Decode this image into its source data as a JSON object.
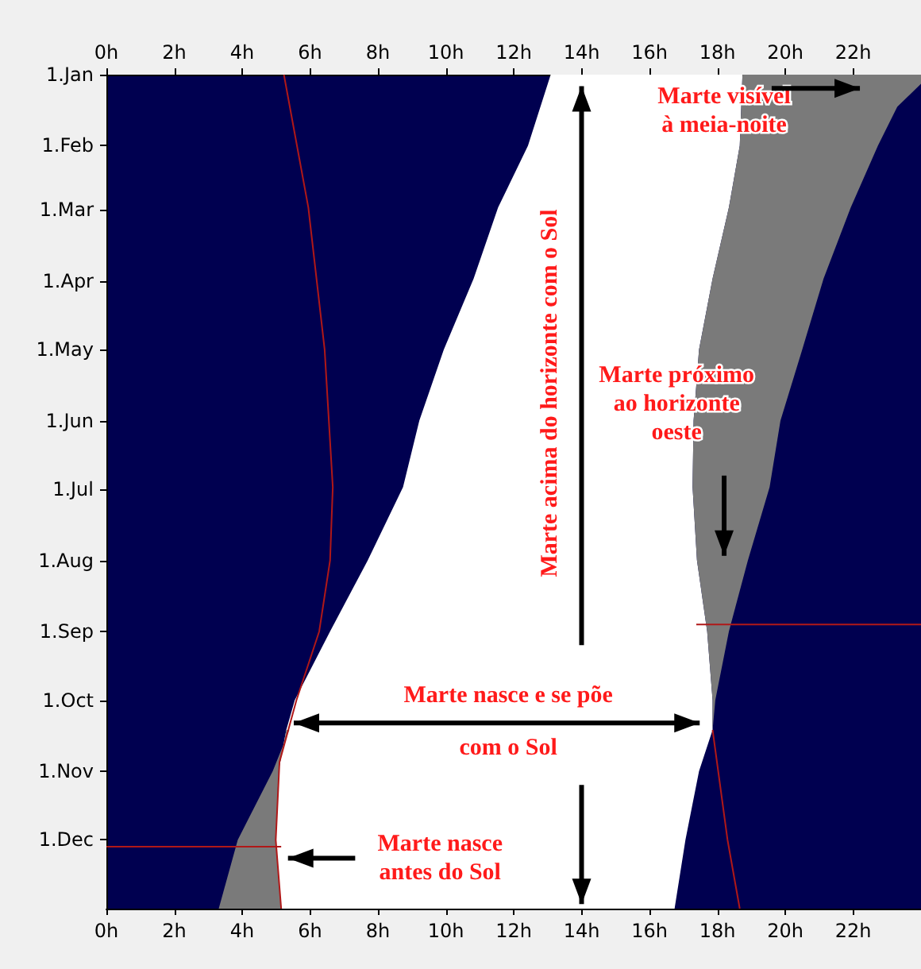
{
  "chart_data": {
    "type": "area",
    "orientation": "horizontal",
    "xlim": [
      0,
      24
    ],
    "xticks": [
      {
        "value": 0,
        "label": "0h"
      },
      {
        "value": 2,
        "label": "2h"
      },
      {
        "value": 4,
        "label": "4h"
      },
      {
        "value": 6,
        "label": "6h"
      },
      {
        "value": 8,
        "label": "8h"
      },
      {
        "value": 10,
        "label": "10h"
      },
      {
        "value": 12,
        "label": "12h"
      },
      {
        "value": 14,
        "label": "14h"
      },
      {
        "value": 16,
        "label": "16h"
      },
      {
        "value": 18,
        "label": "18h"
      },
      {
        "value": 20,
        "label": "20h"
      },
      {
        "value": 22,
        "label": "22h"
      }
    ],
    "x2lim": [
      0,
      24
    ],
    "x2ticks": [
      {
        "value": 0,
        "label": "0h"
      },
      {
        "value": 2,
        "label": "2h"
      },
      {
        "value": 4,
        "label": "4h"
      },
      {
        "value": 6,
        "label": "6h"
      },
      {
        "value": 8,
        "label": "8h"
      },
      {
        "value": 10,
        "label": "10h"
      },
      {
        "value": 12,
        "label": "12h"
      },
      {
        "value": 14,
        "label": "14h"
      },
      {
        "value": 16,
        "label": "16h"
      },
      {
        "value": 18,
        "label": "18h"
      },
      {
        "value": 20,
        "label": "20h"
      },
      {
        "value": 22,
        "label": "22h"
      }
    ],
    "ylim": [
      "--12-31",
      "--01-01"
    ],
    "yticks": [
      {
        "value": "--01-01",
        "label": "1.Jan"
      },
      {
        "value": "--02-01",
        "label": "1.Feb"
      },
      {
        "value": "--03-01",
        "label": "1.Mar"
      },
      {
        "value": "--04-01",
        "label": "1.Apr"
      },
      {
        "value": "--05-01",
        "label": "1.May"
      },
      {
        "value": "--06-01",
        "label": "1.Jun"
      },
      {
        "value": "--07-01",
        "label": "1.Jul"
      },
      {
        "value": "--08-01",
        "label": "1.Aug"
      },
      {
        "value": "--09-01",
        "label": "1.Sep"
      },
      {
        "value": "--10-01",
        "label": "1.Oct"
      },
      {
        "value": "--11-01",
        "label": "1.Nov"
      },
      {
        "value": "--12-01",
        "label": "1.Dec"
      }
    ],
    "series": [
      {
        "color": "#ffffff",
        "values": [
          13.09,
          12.42,
          11.54,
          10.82,
          9.94,
          9.22,
          8.74,
          7.7,
          6.59,
          5.55,
          5.3,
          5.07,
          4.99,
          5.15,
          16.74,
          17.06,
          17.46,
          17.86,
          17.86,
          17.7,
          17.4,
          17.27,
          17.3,
          17.46,
          17.86,
          18.34,
          18.66,
          18.74
        ],
        "x": [
          "--01-01",
          "--02-01",
          "--02-28",
          "--03-31",
          "--05-01",
          "--06-01",
          "--06-30",
          "--08-01",
          "--09-01",
          "--10-01",
          "--10-14",
          "--11-01",
          "--12-01",
          "--12-31",
          "--12-31",
          "--12-01",
          "--11-01",
          "--10-14",
          "--10-01",
          "--09-01",
          "--08-01",
          "--06-30",
          "--06-01",
          "--05-01",
          "--03-31",
          "--02-28",
          "--02-01",
          "--01-01"
        ]
      },
      {
        "color": "#7a7a7a",
        "values": [
          18.74,
          18.66,
          18.34,
          17.86,
          17.46,
          17.3,
          17.27,
          17.4,
          17.7,
          17.86,
          17.86,
          17.94,
          18.34,
          18.9,
          19.54,
          19.86,
          20.5,
          21.13,
          21.93,
          22.73,
          23.3,
          24,
          24
        ],
        "x": [
          "--01-01",
          "--02-01",
          "--02-28",
          "--03-31",
          "--05-01",
          "--06-01",
          "--06-30",
          "--08-01",
          "--09-01",
          "--10-01",
          "--10-14",
          "--10-01",
          "--09-01",
          "--08-01",
          "--06-30",
          "--06-01",
          "--05-01",
          "--03-31",
          "--02-28",
          "--02-01",
          "--01-15",
          "--01-05",
          "--01-01"
        ]
      },
      {
        "color": "#7a7a7a",
        "values": [
          5.39,
          4.9,
          3.87,
          3.31,
          5.15,
          4.99,
          5.07,
          5.3
        ],
        "x": [
          "--10-14",
          "--11-01",
          "--12-01",
          "--12-31",
          "--12-31",
          "--12-01",
          "--11-01",
          "--10-14"
        ]
      },
      {
        "type": "line",
        "color": "#b01818",
        "values": [
          5.23,
          5.95,
          6.43,
          6.67,
          6.59,
          6.27,
          5.6,
          5.1,
          4.99,
          5.15
        ],
        "x": [
          "--01-01",
          "--02-28",
          "--05-01",
          "--06-30",
          "--08-01",
          "--09-01",
          "--10-01",
          "--10-28",
          "--12-01",
          "--12-31"
        ]
      },
      {
        "type": "line",
        "color": "#b01818",
        "values": [
          17.86,
          18.3,
          18.66
        ],
        "x": [
          "--10-14",
          "--12-01",
          "--12-31"
        ]
      },
      {
        "type": "line",
        "color": "#b01818",
        "values": [
          17.38,
          24
        ],
        "x": [
          "--08-29",
          "--08-29"
        ]
      },
      {
        "type": "line",
        "color": "#b01818",
        "values": [
          0,
          5.15
        ],
        "x": [
          "--12-04",
          "--12-04"
        ]
      }
    ],
    "annotations": [
      "Marte visível\nà meia-noite",
      "Marte acima do horizonte com o Sol",
      "Marte próximo\nao horizonte\noeste",
      "Marte nasce e se põe",
      "com o Sol",
      "Marte nasce\nantes do Sol"
    ]
  }
}
